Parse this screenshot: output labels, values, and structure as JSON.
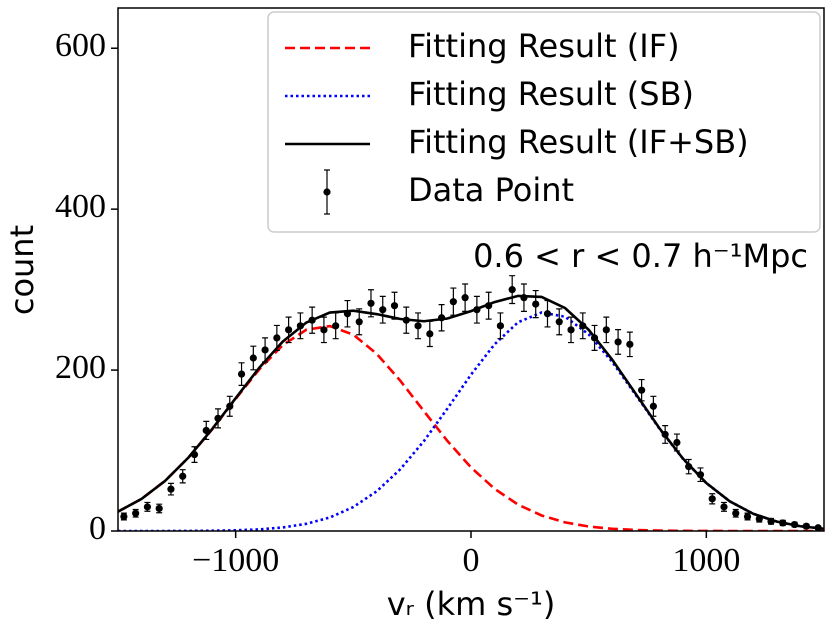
{
  "chart_data": {
    "type": "line",
    "xlabel": "vᵣ (km s⁻¹)",
    "ylabel": "count",
    "annotation": "0.6 < r < 0.7 h⁻¹Mpc",
    "xlim": [
      -1500,
      1500
    ],
    "ylim": [
      0,
      650
    ],
    "xticks": [
      {
        "value": -1000,
        "label": "−1000"
      },
      0,
      1000
    ],
    "yticks": [
      0,
      200,
      400,
      600
    ],
    "legend": "upper right",
    "x": [
      -1500,
      -1400,
      -1300,
      -1200,
      -1100,
      -1000,
      -900,
      -800,
      -700,
      -600,
      -500,
      -400,
      -300,
      -200,
      -100,
      0,
      100,
      200,
      300,
      400,
      500,
      600,
      700,
      800,
      900,
      1000,
      1100,
      1200,
      1300,
      1400,
      1500
    ],
    "series": [
      {
        "name": "Fitting Result (IF)",
        "color": "#ff0000",
        "style": "dashed",
        "values": [
          24.1,
          39.9,
          62.3,
          91.4,
          126.3,
          164.2,
          200.8,
          231.0,
          250.1,
          254.7,
          244.0,
          220.0,
          186.6,
          148.9,
          111.8,
          79.0,
          52.5,
          32.8,
          19.3,
          10.7,
          5.6,
          2.7,
          1.3,
          0.5,
          0.2,
          0.1,
          0,
          0,
          0,
          0,
          0
        ]
      },
      {
        "name": "Fitting Result (SB)",
        "color": "#0000ff",
        "style": "dotted",
        "values": [
          0,
          0,
          0,
          0.1,
          0.4,
          0.9,
          2.0,
          4.4,
          8.9,
          16.8,
          29.8,
          49.5,
          76.9,
          111.8,
          152.3,
          194.3,
          232.0,
          259.4,
          271.6,
          266.3,
          244.5,
          210.2,
          169.2,
          127.5,
          90.0,
          59.5,
          36.8,
          21.3,
          11.6,
          5.9,
          2.8
        ]
      },
      {
        "name": "Fitting Result (IF+SB)",
        "color": "#000000",
        "style": "solid",
        "values": [
          24.1,
          39.9,
          62.3,
          91.5,
          126.7,
          165.1,
          202.8,
          235.4,
          259.0,
          271.5,
          273.8,
          269.5,
          263.5,
          260.7,
          264.1,
          273.3,
          284.5,
          292.2,
          290.9,
          277.0,
          250.1,
          212.9,
          170.5,
          128.0,
          90.2,
          59.6,
          36.8,
          21.3,
          11.6,
          5.9,
          2.8
        ]
      }
    ],
    "data_points": {
      "name": "Data Point",
      "color": "#000000",
      "x": [
        -1475,
        -1425,
        -1375,
        -1325,
        -1275,
        -1225,
        -1175,
        -1125,
        -1075,
        -1025,
        -975,
        -925,
        -875,
        -825,
        -775,
        -725,
        -675,
        -625,
        -575,
        -525,
        -475,
        -425,
        -375,
        -325,
        -275,
        -225,
        -175,
        -125,
        -75,
        -25,
        25,
        75,
        125,
        175,
        225,
        275,
        325,
        375,
        425,
        475,
        525,
        575,
        625,
        675,
        725,
        775,
        825,
        875,
        925,
        975,
        1025,
        1075,
        1125,
        1175,
        1225,
        1275,
        1325,
        1375,
        1425,
        1475
      ],
      "values": [
        18,
        22,
        30,
        28,
        52,
        68,
        95,
        125,
        140,
        155,
        195,
        215,
        225,
        240,
        250,
        255,
        262,
        250,
        255,
        270,
        260,
        283,
        275,
        280,
        262,
        255,
        245,
        265,
        285,
        290,
        275,
        280,
        255,
        300,
        290,
        282,
        270,
        260,
        250,
        255,
        240,
        250,
        235,
        232,
        175,
        155,
        120,
        110,
        80,
        70,
        40,
        30,
        22,
        18,
        15,
        12,
        10,
        8,
        6,
        4
      ],
      "errors": [
        4.2,
        4.7,
        5.5,
        5.3,
        7.2,
        8.2,
        9.7,
        11.2,
        11.8,
        12.4,
        14.0,
        14.7,
        15.0,
        15.5,
        15.8,
        16.0,
        16.2,
        15.8,
        16.0,
        16.4,
        16.1,
        16.8,
        16.6,
        16.7,
        16.2,
        16.0,
        15.7,
        16.3,
        16.9,
        17.0,
        16.6,
        16.7,
        16.0,
        17.3,
        17.0,
        16.8,
        16.4,
        16.1,
        15.8,
        16.0,
        15.5,
        15.8,
        15.3,
        15.2,
        13.2,
        12.4,
        11.0,
        10.5,
        8.9,
        8.4,
        6.3,
        5.5,
        4.7,
        4.2,
        3.9,
        3.5,
        3.2,
        2.8,
        2.4,
        2.0
      ]
    }
  }
}
